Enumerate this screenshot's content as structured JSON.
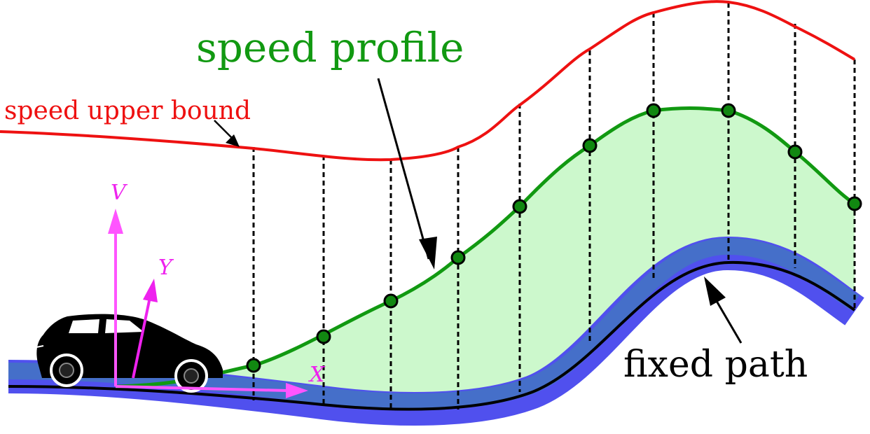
{
  "labels": {
    "speed_profile": "speed profile",
    "speed_upper_bound": "speed upper bound",
    "fixed_path": "fixed path",
    "axis_v": "V",
    "axis_y": "Y",
    "axis_x": "X"
  },
  "colors": {
    "upper_bound": "#ee1111",
    "speed_profile": "#119911",
    "speed_fill": "#ccf8cc",
    "road_outer": "#5050ee",
    "road_inner": "#4472c4",
    "path": "#000000",
    "axes": "#ee22ee",
    "axes_arrow": "#ff55ff",
    "knot_fill": "#118811",
    "car": "#000000"
  },
  "icons": [
    "car-icon"
  ],
  "knot_count": 10
}
